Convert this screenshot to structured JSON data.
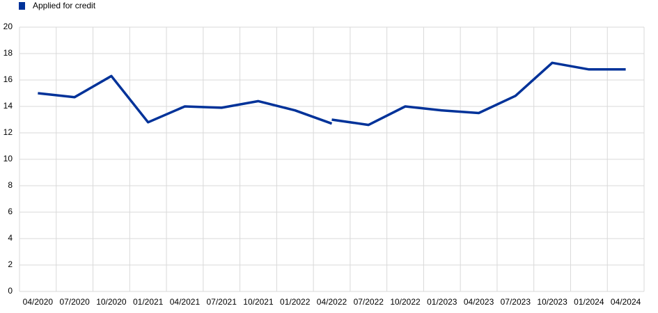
{
  "chart_data": {
    "type": "line",
    "categories": [
      "04/2020",
      "07/2020",
      "10/2020",
      "01/2021",
      "04/2021",
      "07/2021",
      "10/2021",
      "01/2022",
      "04/2022",
      "07/2022",
      "10/2022",
      "01/2023",
      "04/2023",
      "07/2023",
      "10/2023",
      "01/2024",
      "04/2024"
    ],
    "series": [
      {
        "name": "Applied for credit",
        "color": "#003299",
        "values": [
          15.0,
          14.7,
          16.3,
          12.8,
          14.0,
          13.9,
          14.4,
          13.7,
          12.7,
          null,
          null,
          null,
          null,
          null,
          null,
          null,
          null
        ]
      },
      {
        "color": "#003299",
        "values": [
          null,
          null,
          null,
          null,
          null,
          null,
          null,
          null,
          13.0,
          12.6,
          14.0,
          13.7,
          13.5,
          14.8,
          17.3,
          16.8,
          16.8
        ]
      }
    ],
    "ylim": [
      0,
      20
    ],
    "yticks": [
      0,
      2,
      4,
      6,
      8,
      10,
      12,
      14,
      16,
      18,
      20
    ],
    "grid": true,
    "legend": "top-left"
  }
}
